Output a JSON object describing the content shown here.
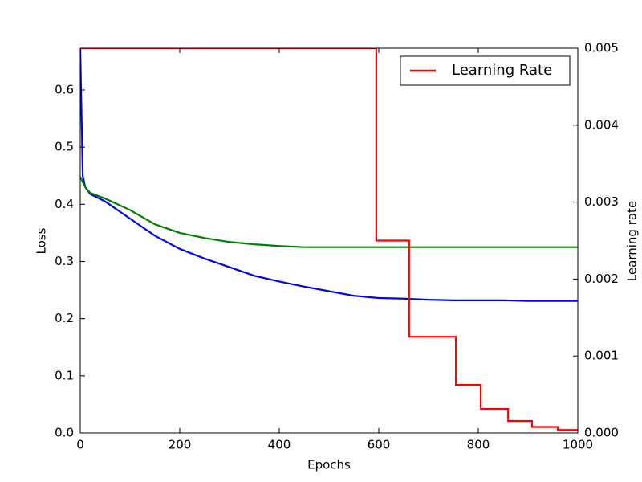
{
  "chart_data": {
    "type": "line",
    "x_label": "Epochs",
    "y_label": "Loss",
    "y2_label": "Learning rate",
    "xlim": [
      0,
      1000
    ],
    "xticks": [
      0,
      200,
      400,
      600,
      800,
      1000
    ],
    "ylim": [
      0,
      0.673
    ],
    "yticks": [
      {
        "value": 0,
        "label": "0.0"
      },
      0.1,
      0.2,
      0.3,
      0.4,
      0.5,
      0.6
    ],
    "y2lim": [
      0,
      0.005
    ],
    "y2ticks": [
      {
        "value": 0,
        "label": "0.000"
      },
      0.001,
      0.002,
      0.003,
      0.004,
      0.005
    ],
    "legend": "upper right",
    "series": [
      {
        "color": "#0000ff",
        "x": [
          0,
          5,
          10,
          20,
          50,
          100,
          150,
          200,
          250,
          300,
          350,
          400,
          450,
          500,
          550,
          600,
          650,
          700,
          750,
          800,
          850,
          900,
          950,
          1000
        ],
        "values": [
          0.673,
          0.45,
          0.43,
          0.418,
          0.405,
          0.375,
          0.345,
          0.322,
          0.305,
          0.29,
          0.275,
          0.265,
          0.256,
          0.248,
          0.24,
          0.236,
          0.235,
          0.233,
          0.232,
          0.232,
          0.232,
          0.231,
          0.231,
          0.231
        ]
      },
      {
        "color": "#008000",
        "x": [
          0,
          10,
          20,
          50,
          100,
          150,
          200,
          250,
          300,
          350,
          400,
          450,
          500,
          550,
          600,
          650,
          700,
          750,
          800,
          850,
          900,
          950,
          1000
        ],
        "values": [
          0.448,
          0.43,
          0.42,
          0.41,
          0.39,
          0.365,
          0.35,
          0.341,
          0.334,
          0.33,
          0.327,
          0.325,
          0.325,
          0.325,
          0.325,
          0.325,
          0.325,
          0.325,
          0.325,
          0.325,
          0.325,
          0.325,
          0.325
        ]
      },
      {
        "name": "Learning Rate",
        "color": "#ff0000",
        "axis": "y2",
        "x": [
          0,
          595,
          595,
          661,
          661,
          755,
          755,
          805,
          805,
          860,
          860,
          908,
          908,
          960,
          960,
          1000
        ],
        "values": [
          0.005,
          0.005,
          0.0025,
          0.0025,
          0.00125,
          0.00125,
          0.000625,
          0.000625,
          0.0003125,
          0.0003125,
          0.00015625,
          0.00015625,
          7.8e-05,
          7.8e-05,
          3.9e-05,
          3.9e-05
        ]
      }
    ]
  }
}
